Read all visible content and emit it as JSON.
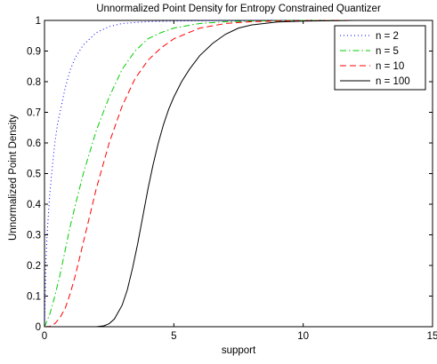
{
  "chart_data": {
    "type": "line",
    "title": "Unnormalized Point Density for Entropy Constrained Quantizer",
    "xlabel": "support",
    "ylabel": "Unnormalized Point Density",
    "xlim": [
      0,
      15
    ],
    "ylim": [
      0,
      1
    ],
    "xticks": [
      "0",
      "5",
      "10",
      "15"
    ],
    "yticks": [
      "0",
      "0.1",
      "0.2",
      "0.3",
      "0.4",
      "0.5",
      "0.6",
      "0.7",
      "0.8",
      "0.9",
      "1"
    ],
    "grid": false,
    "legend_position": "top-right",
    "series": [
      {
        "name": "n = 2",
        "color": "#0000ff",
        "style": "dotted",
        "x": [
          0,
          0.05,
          0.1,
          0.2,
          0.3,
          0.4,
          0.5,
          0.6,
          0.8,
          1.0,
          1.2,
          1.5,
          2.0,
          2.5,
          3.0,
          3.5,
          4.0,
          5.0,
          6.0,
          8.0,
          10.0,
          12.0,
          15.0
        ],
        "values": [
          0,
          0.2,
          0.3,
          0.43,
          0.52,
          0.6,
          0.66,
          0.7,
          0.78,
          0.84,
          0.88,
          0.92,
          0.96,
          0.98,
          0.99,
          0.993,
          0.996,
          0.998,
          0.999,
          1.0,
          1.0,
          1.0,
          1.0
        ]
      },
      {
        "name": "n = 5",
        "color": "#00cc00",
        "style": "dash-dot",
        "x": [
          0,
          0.2,
          0.4,
          0.6,
          0.8,
          1.0,
          1.2,
          1.5,
          2.0,
          2.5,
          3.0,
          3.5,
          4.0,
          4.5,
          5.0,
          6.0,
          7.0,
          8.0,
          10.0,
          12.0,
          15.0
        ],
        "values": [
          0,
          0.04,
          0.1,
          0.17,
          0.25,
          0.33,
          0.4,
          0.5,
          0.64,
          0.75,
          0.84,
          0.9,
          0.94,
          0.96,
          0.975,
          0.99,
          0.996,
          0.998,
          1.0,
          1.0,
          1.0
        ]
      },
      {
        "name": "n = 10",
        "color": "#ff0000",
        "style": "dashed",
        "x": [
          0,
          0.2,
          0.4,
          0.6,
          0.8,
          1.0,
          1.2,
          1.4,
          1.6,
          1.8,
          2.0,
          2.5,
          3.0,
          3.5,
          4.0,
          4.5,
          5.0,
          6.0,
          7.0,
          8.0,
          9.0,
          10.0,
          12.0,
          15.0
        ],
        "values": [
          0,
          0.001,
          0.01,
          0.03,
          0.06,
          0.11,
          0.17,
          0.24,
          0.31,
          0.38,
          0.45,
          0.6,
          0.72,
          0.81,
          0.87,
          0.91,
          0.94,
          0.975,
          0.99,
          0.996,
          0.998,
          0.999,
          1.0,
          1.0
        ]
      },
      {
        "name": "n = 100",
        "color": "#000000",
        "style": "solid",
        "x": [
          0,
          1.0,
          2.0,
          2.3,
          2.5,
          2.7,
          3.0,
          3.2,
          3.4,
          3.6,
          3.8,
          4.0,
          4.2,
          4.4,
          4.6,
          4.8,
          5.0,
          5.3,
          5.6,
          6.0,
          6.5,
          7.0,
          7.5,
          8.0,
          9.0,
          10.0,
          12.0,
          15.0
        ],
        "values": [
          0,
          0,
          0,
          0.003,
          0.01,
          0.025,
          0.07,
          0.12,
          0.19,
          0.27,
          0.36,
          0.45,
          0.53,
          0.6,
          0.66,
          0.71,
          0.75,
          0.8,
          0.84,
          0.885,
          0.925,
          0.955,
          0.975,
          0.985,
          0.995,
          0.998,
          1.0,
          1.0
        ]
      }
    ]
  }
}
